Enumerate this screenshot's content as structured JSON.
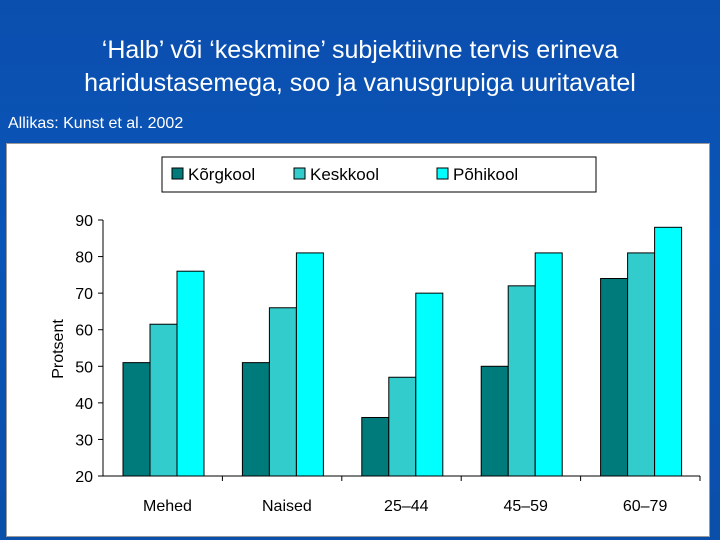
{
  "slide": {
    "title_line1": "‘Halb’ või ‘keskmine’ subjektiivne tervis erineva",
    "title_line2": "haridustasemega, soo ja vanusgrupiga uuritavatel",
    "source": "Allikas: Kunst et al. 2002"
  },
  "chart_data": {
    "type": "bar",
    "title": "",
    "xlabel": "",
    "ylabel": "Protsent",
    "ylim": [
      20,
      90
    ],
    "yticks": [
      20,
      30,
      40,
      50,
      60,
      70,
      80,
      90
    ],
    "categories": [
      "Mehed",
      "Naised",
      "25–44",
      "45–59",
      "60–79"
    ],
    "legend_position": "top",
    "grid": false,
    "series": [
      {
        "name": "Kõrgkool",
        "color": "#007b7b",
        "values": [
          51,
          51,
          36,
          50,
          74
        ]
      },
      {
        "name": "Keskkool",
        "color": "#33cccc",
        "values": [
          61.5,
          66,
          47,
          72,
          81
        ]
      },
      {
        "name": "Põhikool",
        "color": "#00ffff",
        "values": [
          76,
          81,
          70,
          81,
          88
        ]
      }
    ]
  }
}
